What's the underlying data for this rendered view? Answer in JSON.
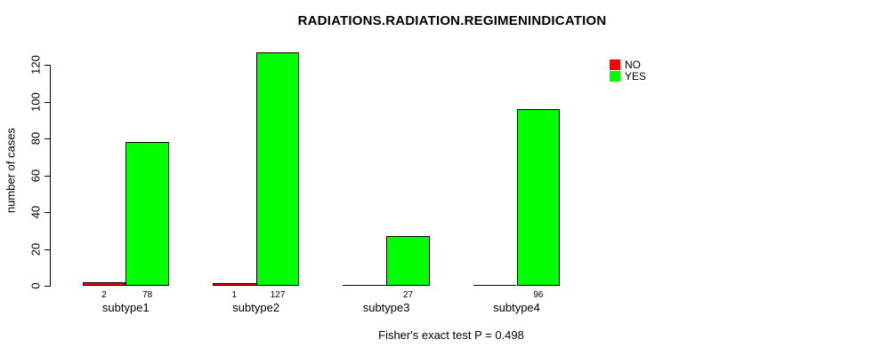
{
  "chart_data": {
    "type": "bar",
    "grouped": true,
    "title": "RADIATIONS.RADIATION.REGIMENINDICATION",
    "xlabel": "",
    "ylabel": "number of cases",
    "categories": [
      "subtype1",
      "subtype2",
      "subtype3",
      "subtype4"
    ],
    "series": [
      {
        "name": "NO",
        "color": "#ff0000",
        "values": [
          2,
          1,
          0,
          0
        ]
      },
      {
        "name": "YES",
        "color": "#00ff00",
        "values": [
          78,
          127,
          27,
          96
        ]
      }
    ],
    "bar_value_labels": [
      [
        "2",
        "78"
      ],
      [
        "1",
        "127"
      ],
      [
        "",
        "27"
      ],
      [
        "",
        "96"
      ]
    ],
    "ylim": [
      0,
      120
    ],
    "yticks": [
      0,
      20,
      40,
      60,
      80,
      100,
      120
    ],
    "grid": false,
    "bar_outline_color": "#000000",
    "legend": {
      "position": "top-right",
      "entries": [
        {
          "label": "NO",
          "color": "#ff0000"
        },
        {
          "label": "YES",
          "color": "#00ff00"
        }
      ]
    },
    "annotation": "Fisher's exact test P = 0.498"
  }
}
